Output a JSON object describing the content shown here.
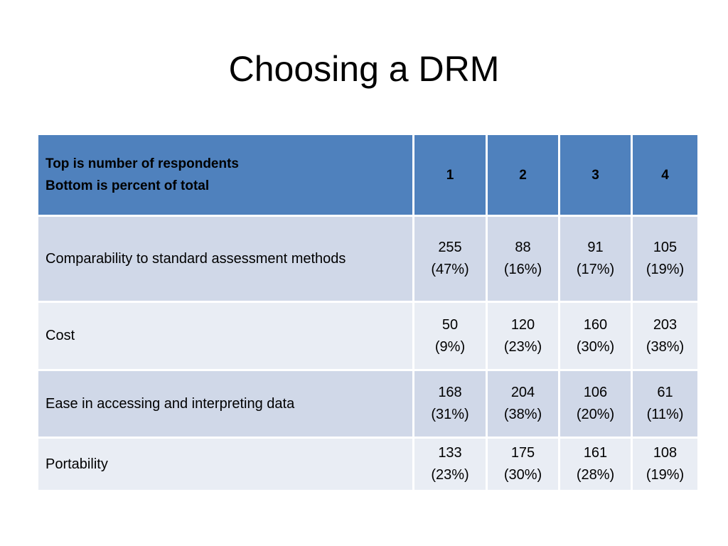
{
  "title": "Choosing a DRM",
  "table": {
    "header": {
      "label": [
        "Top is number of respondents",
        "Bottom is percent of total"
      ],
      "columns": [
        "1",
        "2",
        "3",
        "4"
      ]
    },
    "rows": [
      {
        "label": "Comparability to standard assessment methods",
        "cells": [
          [
            "255",
            "(47%)"
          ],
          [
            "88",
            "(16%)"
          ],
          [
            "91",
            "(17%)"
          ],
          [
            "105",
            "(19%)"
          ]
        ]
      },
      {
        "label": "Cost",
        "cells": [
          [
            "50",
            "(9%)"
          ],
          [
            "120",
            "(23%)"
          ],
          [
            "160",
            "(30%)"
          ],
          [
            "203",
            "(38%)"
          ]
        ]
      },
      {
        "label": "Ease in accessing and interpreting data",
        "cells": [
          [
            "168",
            "(31%)"
          ],
          [
            "204",
            "(38%)"
          ],
          [
            "106",
            "(20%)"
          ],
          [
            "61",
            "(11%)"
          ]
        ]
      },
      {
        "label": "Portability",
        "cells": [
          [
            "133",
            "(23%)"
          ],
          [
            "175",
            "(30%)"
          ],
          [
            "161",
            "(28%)"
          ],
          [
            "108",
            "(19%)"
          ]
        ]
      }
    ]
  }
}
